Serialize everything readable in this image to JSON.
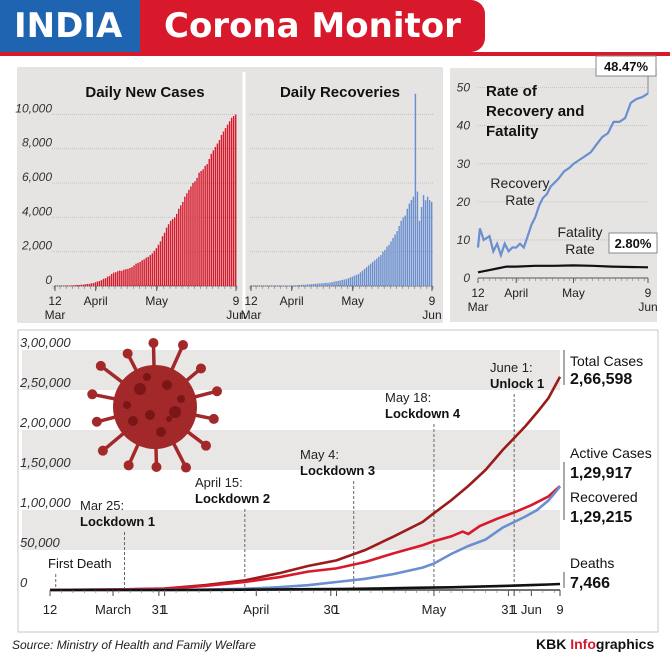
{
  "header": {
    "left_title": "INDIA",
    "right_title": "Corona Monitor"
  },
  "footer": {
    "source": "Source: Ministry of Health and Family Welfare",
    "brand_a": "KBK ",
    "brand_b": "Info",
    "brand_c": "graphics"
  },
  "colors": {
    "red": "#d7192b",
    "darkred": "#9b1b1b",
    "blue": "#6a8fd0",
    "black": "#111111",
    "panel": "#e6e4e3",
    "band": "#e9e7e6",
    "virus": "#a3282a"
  },
  "chart_data": [
    {
      "type": "bar",
      "title": "Daily New Cases",
      "ylim": [
        0,
        12000
      ],
      "yticks": [
        "0",
        "2,000",
        "4,000",
        "6,000",
        "8,000",
        "10,000"
      ],
      "xticks": [
        {
          "d": 0,
          "label": "12"
        },
        {
          "d": 0,
          "label2": "Mar"
        },
        {
          "d": 20,
          "label": "April"
        },
        {
          "d": 50,
          "label": "May"
        },
        {
          "d": 89,
          "label": "9"
        },
        {
          "d": 89,
          "label2": "Jun"
        }
      ],
      "values": [
        5,
        10,
        12,
        9,
        15,
        20,
        22,
        21,
        30,
        35,
        48,
        63,
        60,
        75,
        80,
        100,
        120,
        125,
        155,
        170,
        220,
        260,
        290,
        340,
        420,
        450,
        540,
        590,
        700,
        780,
        800,
        860,
        900,
        880,
        950,
        980,
        1000,
        1050,
        1100,
        1200,
        1300,
        1350,
        1400,
        1500,
        1550,
        1650,
        1700,
        1800,
        1900,
        2050,
        2200,
        2400,
        2600,
        2900,
        3100,
        3400,
        3600,
        3800,
        3900,
        4000,
        4200,
        4500,
        4700,
        4900,
        5200,
        5400,
        5600,
        5800,
        6000,
        6100,
        6300,
        6600,
        6700,
        6800,
        7000,
        7100,
        7400,
        7700,
        7900,
        8100,
        8300,
        8500,
        8800,
        9000,
        9200,
        9400,
        9600,
        9800,
        9900,
        9983
      ]
    },
    {
      "type": "bar",
      "title": "Daily Recoveries",
      "ylim": [
        0,
        12000
      ],
      "xticks": [
        {
          "d": 0,
          "label": "12"
        },
        {
          "d": 0,
          "label2": "Mar"
        },
        {
          "d": 20,
          "label": "April"
        },
        {
          "d": 50,
          "label": "May"
        },
        {
          "d": 89,
          "label": "9"
        },
        {
          "d": 89,
          "label2": "Jun"
        }
      ],
      "values": [
        0,
        0,
        0,
        1,
        1,
        2,
        2,
        3,
        3,
        4,
        5,
        6,
        8,
        10,
        12,
        15,
        18,
        20,
        25,
        30,
        35,
        40,
        45,
        50,
        60,
        70,
        75,
        80,
        90,
        100,
        110,
        120,
        130,
        140,
        150,
        160,
        170,
        180,
        190,
        200,
        220,
        250,
        280,
        300,
        320,
        350,
        380,
        400,
        450,
        500,
        550,
        600,
        650,
        700,
        800,
        900,
        1000,
        1100,
        1200,
        1300,
        1400,
        1500,
        1600,
        1700,
        1800,
        2000,
        2100,
        2300,
        2400,
        2600,
        2800,
        3000,
        3200,
        3500,
        3800,
        4000,
        4100,
        4500,
        4800,
        5000,
        5200,
        11200,
        5500,
        3800,
        4600,
        5300,
        5000,
        5200,
        5000,
        4900
      ]
    },
    {
      "type": "line",
      "title": "Rate of Recovery and Fatality",
      "ylim": [
        0,
        52
      ],
      "yticks": [
        0,
        10,
        20,
        30,
        40,
        50
      ],
      "xticks": [
        {
          "d": 0,
          "label": "12"
        },
        {
          "d": 0,
          "label2": "Mar"
        },
        {
          "d": 20,
          "label": "April"
        },
        {
          "d": 50,
          "label": "May"
        },
        {
          "d": 89,
          "label": "9"
        },
        {
          "d": 89,
          "label2": "Jun"
        }
      ],
      "series": [
        {
          "name": "Recovery Rate",
          "end_label": "48.47%",
          "points": [
            [
              0,
              8
            ],
            [
              1,
              13
            ],
            [
              3,
              10
            ],
            [
              6,
              11
            ],
            [
              8,
              7
            ],
            [
              10,
              9
            ],
            [
              12,
              6
            ],
            [
              14,
              9
            ],
            [
              16,
              7
            ],
            [
              18,
              8
            ],
            [
              20,
              8
            ],
            [
              22,
              9
            ],
            [
              24,
              8
            ],
            [
              26,
              11
            ],
            [
              28,
              14
            ],
            [
              30,
              16
            ],
            [
              32,
              19
            ],
            [
              34,
              21
            ],
            [
              36,
              22
            ],
            [
              38,
              24
            ],
            [
              40,
              25
            ],
            [
              42,
              26
            ],
            [
              45,
              28
            ],
            [
              48,
              29
            ],
            [
              50,
              30
            ],
            [
              53,
              31
            ],
            [
              56,
              32
            ],
            [
              59,
              33
            ],
            [
              62,
              35
            ],
            [
              65,
              37
            ],
            [
              68,
              38
            ],
            [
              71,
              41
            ],
            [
              74,
              41
            ],
            [
              77,
              42
            ],
            [
              80,
              46
            ],
            [
              83,
              47
            ],
            [
              86,
              47.5
            ],
            [
              89,
              48.47
            ]
          ]
        },
        {
          "name": "Fatality Rate",
          "end_label": "2.80%",
          "points": [
            [
              0,
              1.5
            ],
            [
              5,
              2
            ],
            [
              10,
              2.5
            ],
            [
              15,
              3
            ],
            [
              20,
              3
            ],
            [
              30,
              3.2
            ],
            [
              40,
              3.2
            ],
            [
              50,
              3.3
            ],
            [
              60,
              3.2
            ],
            [
              70,
              3
            ],
            [
              80,
              2.9
            ],
            [
              89,
              2.8
            ]
          ]
        }
      ]
    },
    {
      "type": "line",
      "ylim": [
        0,
        300000
      ],
      "yticks": [
        "0",
        "50,000",
        "1,00,000",
        "1,50,000",
        "2,00,000",
        "2,50,000",
        "3,00,000"
      ],
      "xticks": [
        {
          "d": 0,
          "label": "12"
        },
        {
          "d": 11,
          "label": "March"
        },
        {
          "d": 19,
          "label": "31"
        },
        {
          "d": 20,
          "label": "1"
        },
        {
          "d": 36,
          "label": "April"
        },
        {
          "d": 49,
          "label": "30"
        },
        {
          "d": 50,
          "label": "1"
        },
        {
          "d": 67,
          "label": "May"
        },
        {
          "d": 80,
          "label": "31"
        },
        {
          "d": 81,
          "label": "1"
        },
        {
          "d": 84,
          "label": "Jun"
        },
        {
          "d": 89,
          "label": "9"
        }
      ],
      "annotations": [
        {
          "d": 1,
          "line1": "",
          "line2": "First Death"
        },
        {
          "d": 13,
          "line1": "Mar 25:",
          "line2": "Lockdown 1"
        },
        {
          "d": 34,
          "line1": "April 15:",
          "line2": "Lockdown 2"
        },
        {
          "d": 53,
          "line1": "May 4:",
          "line2": "Lockdown 3"
        },
        {
          "d": 67,
          "line1": "May 18:",
          "line2": "Lockdown 4"
        },
        {
          "d": 81,
          "line1": "June 1:",
          "line2": "Unlock 1"
        }
      ],
      "series": [
        {
          "name": "Total Cases",
          "end_label": "2,66,598",
          "points": [
            [
              0,
              100
            ],
            [
              10,
              500
            ],
            [
              20,
              1800
            ],
            [
              27,
              6000
            ],
            [
              34,
              12000
            ],
            [
              40,
              21000
            ],
            [
              45,
              30000
            ],
            [
              50,
              37000
            ],
            [
              55,
              50000
            ],
            [
              60,
              67000
            ],
            [
              65,
              85000
            ],
            [
              67,
              96000
            ],
            [
              70,
              112000
            ],
            [
              73,
              130000
            ],
            [
              76,
              150000
            ],
            [
              79,
              175000
            ],
            [
              81,
              190000
            ],
            [
              83,
              205000
            ],
            [
              85,
              222000
            ],
            [
              87,
              240000
            ],
            [
              89,
              266598
            ]
          ]
        },
        {
          "name": "Active Cases",
          "end_label": "1,29,917",
          "points": [
            [
              0,
              90
            ],
            [
              10,
              450
            ],
            [
              20,
              1600
            ],
            [
              27,
              5000
            ],
            [
              34,
              10000
            ],
            [
              40,
              16000
            ],
            [
              45,
              23000
            ],
            [
              50,
              27000
            ],
            [
              55,
              35000
            ],
            [
              60,
              46000
            ],
            [
              65,
              56000
            ],
            [
              67,
              61000
            ],
            [
              70,
              67000
            ],
            [
              72,
              73000
            ],
            [
              73,
              70000
            ],
            [
              75,
              80000
            ],
            [
              78,
              89000
            ],
            [
              81,
              97000
            ],
            [
              84,
              106000
            ],
            [
              87,
              117000
            ],
            [
              89,
              129917
            ]
          ]
        },
        {
          "name": "Recovered",
          "end_label": "1,29,215",
          "points": [
            [
              0,
              10
            ],
            [
              10,
              30
            ],
            [
              20,
              100
            ],
            [
              27,
              500
            ],
            [
              34,
              1500
            ],
            [
              40,
              3500
            ],
            [
              45,
              6000
            ],
            [
              50,
              10000
            ],
            [
              55,
              14000
            ],
            [
              60,
              20000
            ],
            [
              65,
              28000
            ],
            [
              67,
              33000
            ],
            [
              70,
              45000
            ],
            [
              73,
              55000
            ],
            [
              76,
              63000
            ],
            [
              79,
              78000
            ],
            [
              81,
              85000
            ],
            [
              83,
              92000
            ],
            [
              85,
              100000
            ],
            [
              87,
              112000
            ],
            [
              89,
              129215
            ]
          ]
        },
        {
          "name": "Deaths",
          "end_label": "7,466",
          "points": [
            [
              0,
              2
            ],
            [
              10,
              10
            ],
            [
              20,
              50
            ],
            [
              27,
              150
            ],
            [
              34,
              400
            ],
            [
              40,
              700
            ],
            [
              45,
              1000
            ],
            [
              50,
              1200
            ],
            [
              55,
              1600
            ],
            [
              60,
              2200
            ],
            [
              65,
              2900
            ],
            [
              70,
              3400
            ],
            [
              75,
              4200
            ],
            [
              80,
              5200
            ],
            [
              84,
              6100
            ],
            [
              87,
              6900
            ],
            [
              89,
              7466
            ]
          ]
        }
      ]
    }
  ]
}
